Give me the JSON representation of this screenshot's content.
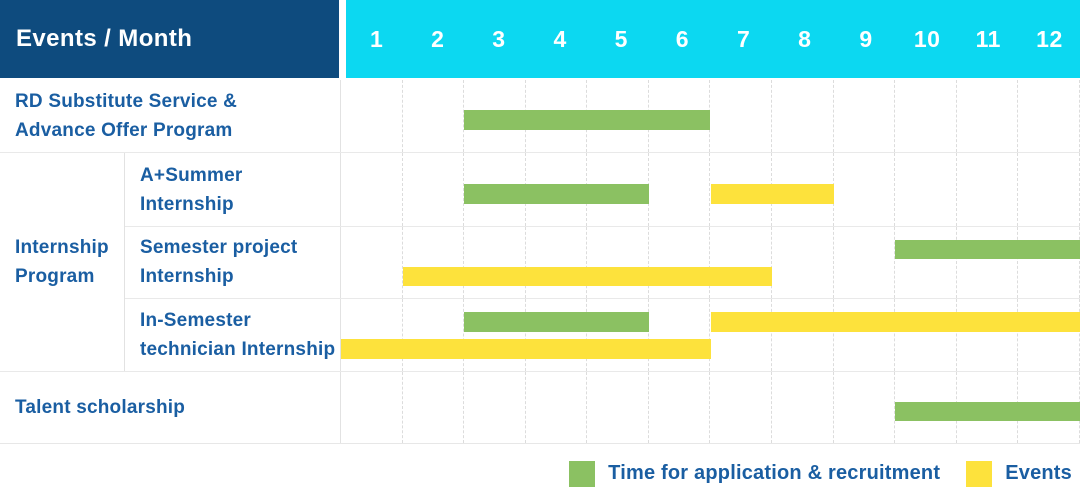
{
  "header": {
    "title": "Events / Month"
  },
  "colors": {
    "header_bg": "#0E4B7E",
    "months_bg": "#0CD8F1",
    "label_text": "#1A5EA2",
    "application": "#8BC162",
    "events": "#FDE23C"
  },
  "chart_data": {
    "type": "gantt",
    "x_axis": {
      "label": "Month",
      "ticks": [
        "1",
        "2",
        "3",
        "4",
        "5",
        "6",
        "7",
        "8",
        "9",
        "10",
        "11",
        "12"
      ],
      "range": [
        1,
        12
      ]
    },
    "rows": [
      {
        "id": "rd-substitute-advance-offer",
        "label": "RD Substitute Service &\nAdvance Offer Program",
        "group": null,
        "lanes": 1,
        "bars": [
          {
            "type": "application",
            "start": 3,
            "end": 6,
            "lane": 0
          }
        ]
      },
      {
        "id": "a-plus-summer-internship",
        "label": "A+Summer\nInternship",
        "group": "Internship\nProgram",
        "lanes": 1,
        "bars": [
          {
            "type": "application",
            "start": 3,
            "end": 5,
            "lane": 0
          },
          {
            "type": "events",
            "start": 7,
            "end": 8,
            "lane": 0
          }
        ]
      },
      {
        "id": "semester-project-internship",
        "label": "Semester project\nInternship",
        "group": "Internship\nProgram",
        "lanes": 2,
        "bars": [
          {
            "type": "application",
            "start": 10,
            "end": 12,
            "lane": 0
          },
          {
            "type": "events",
            "start": 2,
            "end": 7,
            "lane": 1
          }
        ]
      },
      {
        "id": "in-semester-technician-internship",
        "label": "In-Semester\ntechnician Internship",
        "group": "Internship\nProgram",
        "lanes": 2,
        "bars": [
          {
            "type": "application",
            "start": 3,
            "end": 5,
            "lane": 0
          },
          {
            "type": "events",
            "start": 7,
            "end": 12,
            "lane": 0
          },
          {
            "type": "events",
            "start": 1,
            "end": 6,
            "lane": 1
          }
        ]
      },
      {
        "id": "talent-scholarship",
        "label": "Talent scholarship",
        "group": null,
        "lanes": 1,
        "bars": [
          {
            "type": "application",
            "start": 10,
            "end": 12,
            "lane": 0
          }
        ]
      }
    ],
    "legend": [
      {
        "key": "application",
        "label": "Time for application & recruitment"
      },
      {
        "key": "events",
        "label": "Events"
      }
    ]
  }
}
